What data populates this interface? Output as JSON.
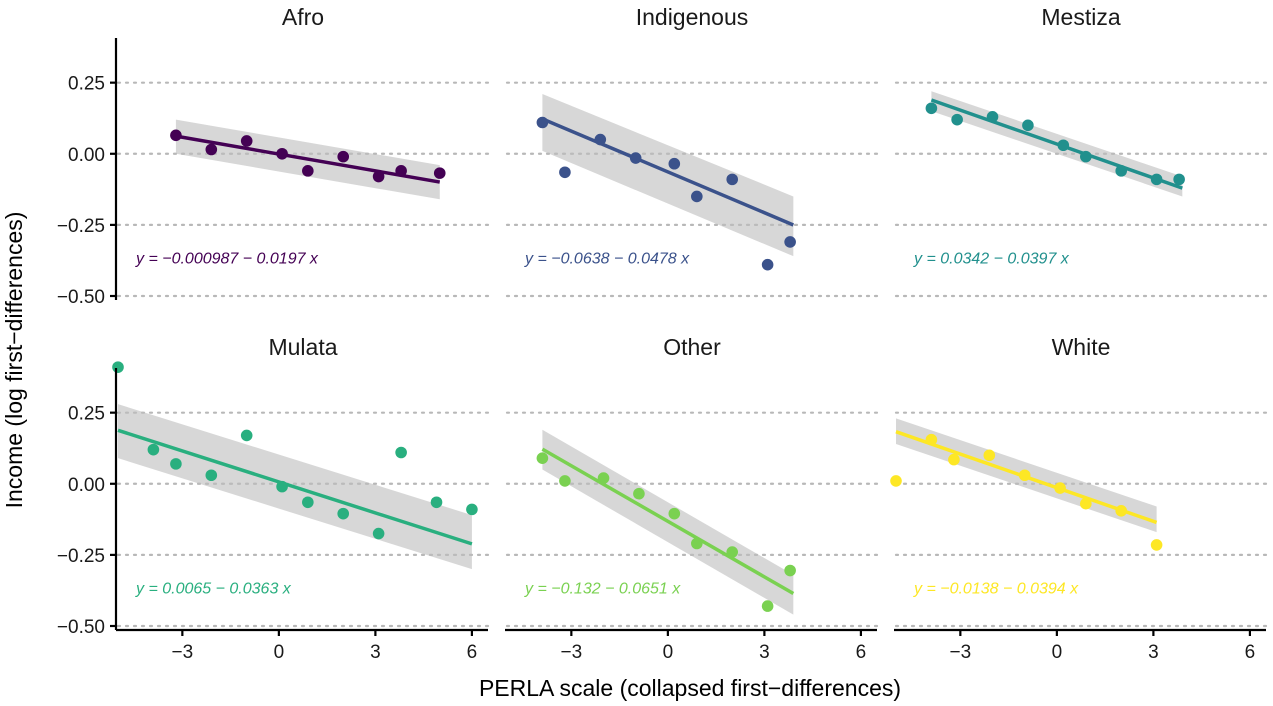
{
  "chart_data": {
    "type": "scatter",
    "xlabel": "PERLA scale (collapsed first−differences)",
    "ylabel": "Income (log first−differences)",
    "xlim": [
      -5,
      6.5
    ],
    "ylim": [
      -0.5,
      0.4
    ],
    "xticks": [
      -3,
      0,
      3,
      6
    ],
    "xtick_labels": [
      "−3",
      "0",
      "3",
      "6"
    ],
    "yticks": [
      0.25,
      0.0,
      -0.25,
      -0.5
    ],
    "ytick_labels": [
      "0.25",
      "0.00",
      "−0.25",
      "−0.50"
    ],
    "grid": "horizontal dotted",
    "facets": [
      {
        "title": "Afro",
        "color": "#440154",
        "equation": "y = −0.000987 − 0.0197 x",
        "intercept": -0.000987,
        "slope": -0.0197,
        "x_range": [
          -3.2,
          5.0
        ],
        "ci_start": [
          0.0,
          0.12
        ],
        "ci_end": [
          -0.16,
          -0.04
        ],
        "points": [
          [
            -3.2,
            0.065
          ],
          [
            -2.1,
            0.015
          ],
          [
            -1.0,
            0.045
          ],
          [
            0.1,
            0.0
          ],
          [
            0.9,
            -0.06
          ],
          [
            2.0,
            -0.01
          ],
          [
            3.1,
            -0.08
          ],
          [
            3.8,
            -0.06
          ],
          [
            5.0,
            -0.068
          ]
        ]
      },
      {
        "title": "Indigenous",
        "color": "#3b528b",
        "equation": "y = −0.0638 − 0.0478 x",
        "intercept": -0.0638,
        "slope": -0.0478,
        "x_range": [
          -3.9,
          3.9
        ],
        "ci_start": [
          0.01,
          0.21
        ],
        "ci_end": [
          -0.36,
          -0.15
        ],
        "points": [
          [
            -3.9,
            0.11
          ],
          [
            -3.2,
            -0.065
          ],
          [
            -2.1,
            0.05
          ],
          [
            -1.0,
            -0.015
          ],
          [
            0.2,
            -0.035
          ],
          [
            0.9,
            -0.15
          ],
          [
            2.0,
            -0.09
          ],
          [
            3.1,
            -0.39
          ],
          [
            3.8,
            -0.31
          ]
        ]
      },
      {
        "title": "Mestiza",
        "color": "#21908d",
        "equation": "y = 0.0342 − 0.0397 x",
        "intercept": 0.0342,
        "slope": -0.0397,
        "x_range": [
          -3.9,
          3.9
        ],
        "ci_start": [
          0.15,
          0.22
        ],
        "ci_end": [
          -0.15,
          -0.08
        ],
        "points": [
          [
            -3.9,
            0.16
          ],
          [
            -3.1,
            0.12
          ],
          [
            -2.0,
            0.13
          ],
          [
            -0.9,
            0.1
          ],
          [
            0.2,
            0.03
          ],
          [
            0.9,
            -0.01
          ],
          [
            2.0,
            -0.06
          ],
          [
            3.1,
            -0.09
          ],
          [
            3.8,
            -0.09
          ]
        ]
      },
      {
        "title": "Mulata",
        "color": "#29af7f",
        "equation": "y = 0.0065 − 0.0363 x",
        "intercept": 0.0065,
        "slope": -0.0363,
        "x_range": [
          -5.0,
          6.0
        ],
        "ci_start": [
          0.09,
          0.28
        ],
        "ci_end": [
          -0.3,
          -0.11
        ],
        "points": [
          [
            -5.0,
            0.41
          ],
          [
            -3.9,
            0.12
          ],
          [
            -3.2,
            0.07
          ],
          [
            -2.1,
            0.03
          ],
          [
            -1.0,
            0.17
          ],
          [
            0.1,
            -0.01
          ],
          [
            0.9,
            -0.065
          ],
          [
            2.0,
            -0.105
          ],
          [
            3.1,
            -0.175
          ],
          [
            3.8,
            0.11
          ],
          [
            4.9,
            -0.065
          ],
          [
            6.0,
            -0.09
          ]
        ]
      },
      {
        "title": "Other",
        "color": "#7ad151",
        "equation": "y = −0.132 − 0.0651 x",
        "intercept": -0.132,
        "slope": -0.0651,
        "x_range": [
          -3.9,
          3.9
        ],
        "ci_start": [
          0.05,
          0.19
        ],
        "ci_end": [
          -0.46,
          -0.32
        ],
        "points": [
          [
            -3.9,
            0.09
          ],
          [
            -3.2,
            0.01
          ],
          [
            -2.0,
            0.02
          ],
          [
            -0.9,
            -0.035
          ],
          [
            0.2,
            -0.105
          ],
          [
            0.9,
            -0.21
          ],
          [
            2.0,
            -0.24
          ],
          [
            3.1,
            -0.43
          ],
          [
            3.8,
            -0.305
          ]
        ]
      },
      {
        "title": "White",
        "color": "#fde725",
        "equation": "y = −0.0138 − 0.0394 x",
        "intercept": -0.0138,
        "slope": -0.0394,
        "x_range": [
          -5.0,
          3.1
        ],
        "ci_start": [
          0.14,
          0.23
        ],
        "ci_end": [
          -0.17,
          -0.08
        ],
        "points": [
          [
            -5.0,
            0.01
          ],
          [
            -3.9,
            0.155
          ],
          [
            -3.2,
            0.085
          ],
          [
            -2.1,
            0.1
          ],
          [
            -1.0,
            0.03
          ],
          [
            0.1,
            -0.015
          ],
          [
            0.9,
            -0.07
          ],
          [
            2.0,
            -0.095
          ],
          [
            3.1,
            -0.215
          ]
        ]
      }
    ]
  }
}
